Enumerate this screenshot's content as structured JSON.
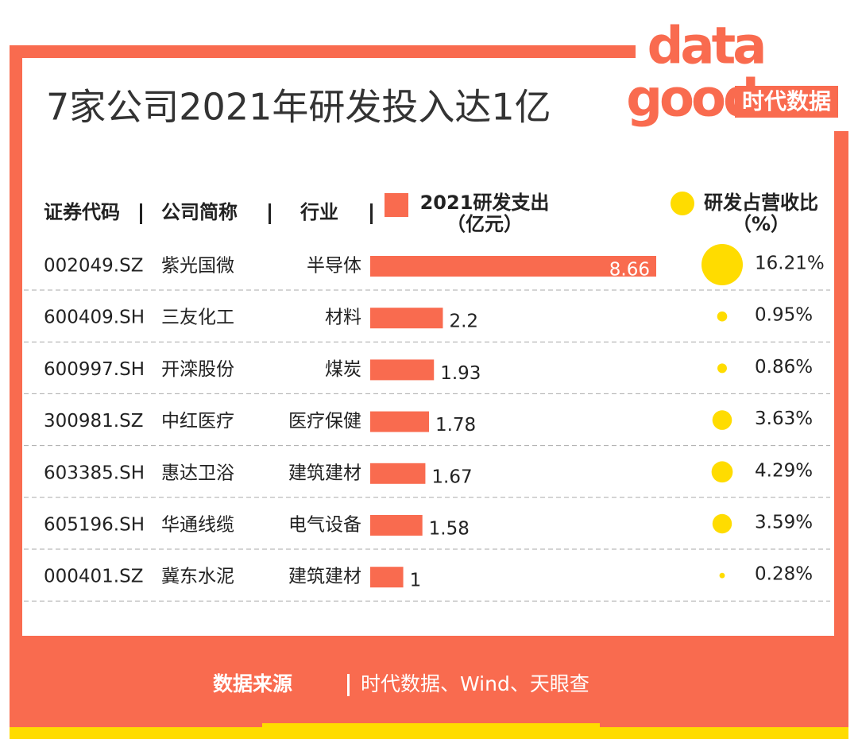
{
  "chart_data": {
    "type": "bar-bubble-table",
    "title": "7家公司2021年研发投入达1亿",
    "logo": {
      "top": "data",
      "bottom": "good",
      "brand": "时代数据"
    },
    "columns": [
      "证券代码",
      "公司简称",
      "行业"
    ],
    "codes": [
      "002049.SZ",
      "600409.SH",
      "600997.SH",
      "300981.SZ",
      "603385.SH",
      "605196.SH",
      "000401.SZ"
    ],
    "names": [
      "紫光国微",
      "三友化工",
      "开滦股份",
      "中红医疗",
      "惠达卫浴",
      "华通线缆",
      "冀东水泥"
    ],
    "industries": [
      "半导体",
      "材料",
      "煤炭",
      "医疗保健",
      "建筑建材",
      "电气设备",
      "建筑建材"
    ],
    "series": [
      {
        "name": "2021研发支出",
        "unit": "（亿元）",
        "color": "#f96b4f",
        "values": [
          8.66,
          2.2,
          1.93,
          1.78,
          1.67,
          1.58,
          1
        ]
      },
      {
        "name": "研发占营收比",
        "unit": "（%）",
        "color": "#ffdc00",
        "values": [
          16.21,
          0.95,
          0.86,
          3.63,
          4.29,
          3.59,
          0.28
        ],
        "value_labels": [
          "16.21%",
          "0.95%",
          "0.86%",
          "3.63%",
          "4.29%",
          "3.59%",
          "0.28%"
        ]
      }
    ],
    "source_label": "数据来源",
    "source": "时代数据、Wind、天眼查"
  }
}
